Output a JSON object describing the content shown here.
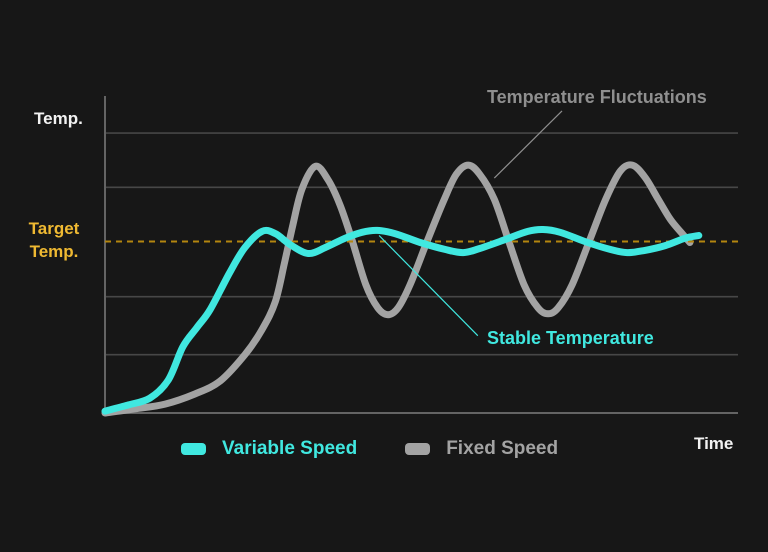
{
  "labels": {
    "target_line1": "Target",
    "target_line2": "Temp."
  },
  "colors": {
    "background": "#171717",
    "axis": "#646464",
    "grid": "#474747",
    "white_text": "#f2f2f2",
    "gold_text": "#efb932",
    "target_line": "#b3860f"
  },
  "chart_data": {
    "type": "line",
    "title": "",
    "xlabel": "Time",
    "ylabel": "Temp.",
    "x_range": [
      0,
      10
    ],
    "y_range": [
      0,
      100
    ],
    "grid": true,
    "legend_position": "bottom",
    "target_temp_level": 54.1,
    "gridline_levels": [
      88.3,
      71.2,
      36.7,
      18.4
    ],
    "series": [
      {
        "name": "Variable Speed",
        "color": "#40e8e0",
        "points": [
          [
            0,
            0.6
          ],
          [
            0.36,
            2.5
          ],
          [
            0.71,
            4.7
          ],
          [
            1.0,
            10.4
          ],
          [
            1.23,
            20.9
          ],
          [
            1.45,
            26.9
          ],
          [
            1.66,
            32.6
          ],
          [
            1.97,
            44.3
          ],
          [
            2.21,
            52.2
          ],
          [
            2.48,
            57.3
          ],
          [
            2.69,
            56.6
          ],
          [
            2.92,
            53.2
          ],
          [
            3.21,
            50.3
          ],
          [
            3.48,
            52.2
          ],
          [
            3.79,
            55.1
          ],
          [
            4.06,
            57.0
          ],
          [
            4.3,
            57.6
          ],
          [
            4.58,
            56.6
          ],
          [
            4.98,
            53.8
          ],
          [
            5.37,
            51.6
          ],
          [
            5.66,
            50.6
          ],
          [
            5.92,
            51.9
          ],
          [
            6.32,
            54.7
          ],
          [
            6.68,
            57.3
          ],
          [
            6.92,
            57.9
          ],
          [
            7.19,
            57.0
          ],
          [
            7.58,
            54.1
          ],
          [
            7.98,
            51.6
          ],
          [
            8.25,
            50.6
          ],
          [
            8.53,
            51.3
          ],
          [
            8.85,
            52.8
          ],
          [
            9.16,
            55.1
          ],
          [
            9.38,
            56.0
          ]
        ]
      },
      {
        "name": "Fixed Speed",
        "color": "#a3a3a3",
        "points": [
          [
            0,
            0.0
          ],
          [
            0.47,
            1.3
          ],
          [
            0.95,
            2.8
          ],
          [
            1.42,
            6.0
          ],
          [
            1.82,
            10.1
          ],
          [
            2.21,
            18.4
          ],
          [
            2.48,
            26.3
          ],
          [
            2.69,
            35.1
          ],
          [
            2.84,
            47.8
          ],
          [
            2.97,
            59.5
          ],
          [
            3.11,
            70.6
          ],
          [
            3.32,
            77.8
          ],
          [
            3.52,
            73.7
          ],
          [
            3.71,
            65.8
          ],
          [
            3.9,
            54.7
          ],
          [
            4.12,
            40.5
          ],
          [
            4.31,
            33.2
          ],
          [
            4.47,
            31.0
          ],
          [
            4.63,
            33.2
          ],
          [
            4.82,
            40.5
          ],
          [
            5.1,
            54.7
          ],
          [
            5.36,
            67.4
          ],
          [
            5.55,
            75.3
          ],
          [
            5.74,
            78.2
          ],
          [
            5.92,
            75.3
          ],
          [
            6.15,
            67.4
          ],
          [
            6.37,
            54.7
          ],
          [
            6.62,
            40.5
          ],
          [
            6.84,
            33.2
          ],
          [
            7.0,
            31.3
          ],
          [
            7.16,
            33.2
          ],
          [
            7.38,
            40.5
          ],
          [
            7.66,
            54.7
          ],
          [
            7.91,
            67.4
          ],
          [
            8.14,
            76.3
          ],
          [
            8.33,
            78.2
          ],
          [
            8.53,
            74.4
          ],
          [
            8.74,
            67.4
          ],
          [
            8.93,
            61.1
          ],
          [
            9.1,
            57.0
          ],
          [
            9.24,
            53.8
          ]
        ]
      }
    ],
    "annotations": [
      {
        "text": "Temperature Fluctuations",
        "color": "#8f8f8f",
        "series": "Fixed Speed",
        "line": [
          [
            7.22,
            95.3
          ],
          [
            6.15,
            74.1
          ]
        ]
      },
      {
        "text": "Stable Temperature",
        "color": "#40e8e0",
        "series": "Variable Speed",
        "line": [
          [
            4.33,
            56.0
          ],
          [
            5.89,
            24.4
          ]
        ]
      }
    ]
  }
}
